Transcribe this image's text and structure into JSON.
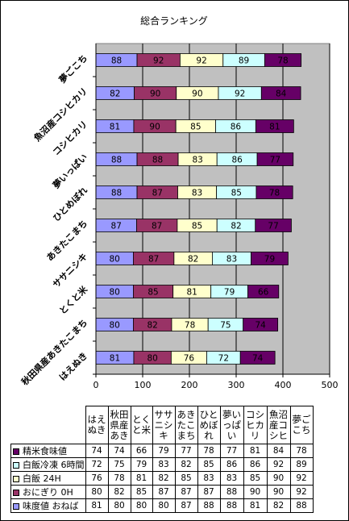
{
  "chart_data": {
    "type": "bar",
    "orientation": "horizontal",
    "stacked": true,
    "title": "総合ランキング",
    "categories": [
      "はえぬき",
      "秋田県産あきたこまち",
      "とくと米",
      "ササニシキ",
      "あきたこまち",
      "ひとめぼれ",
      "夢いっぱい",
      "コシヒカリ",
      "魚沼産コシヒカリ",
      "夢ごこち"
    ],
    "table_headers": [
      "はえぬき",
      "秋田県産あき",
      "とくと米",
      "ササニシキ",
      "あきたこまち",
      "ひとめぼれ",
      "夢いっぱい",
      "コシヒカリ",
      "魚沼産コシヒ",
      "夢ごこち"
    ],
    "series": [
      {
        "name": "味度値 おねば",
        "color": "#9999ff",
        "values": [
          81,
          80,
          80,
          80,
          87,
          88,
          88,
          81,
          82,
          88
        ]
      },
      {
        "name": "おにぎり 0H",
        "color": "#993366",
        "values": [
          80,
          82,
          85,
          87,
          87,
          87,
          88,
          90,
          90,
          92
        ]
      },
      {
        "name": "白飯 24H",
        "color": "#ffffcc",
        "values": [
          76,
          78,
          81,
          82,
          85,
          83,
          83,
          85,
          90,
          92
        ]
      },
      {
        "name": "白飯冷凍 6時間",
        "color": "#ccffff",
        "values": [
          72,
          75,
          79,
          83,
          82,
          85,
          86,
          86,
          92,
          89
        ]
      },
      {
        "name": "精米食味値",
        "color": "#660066",
        "values": [
          74,
          74,
          66,
          79,
          77,
          78,
          77,
          81,
          84,
          78
        ]
      }
    ],
    "table_row_order": [
      4,
      3,
      2,
      1,
      0
    ],
    "xlim": [
      0,
      500
    ],
    "xticks": [
      0,
      100,
      200,
      300,
      400,
      500
    ],
    "grid": true,
    "plot_background": "#c0c0c0",
    "legend": "table-below"
  }
}
